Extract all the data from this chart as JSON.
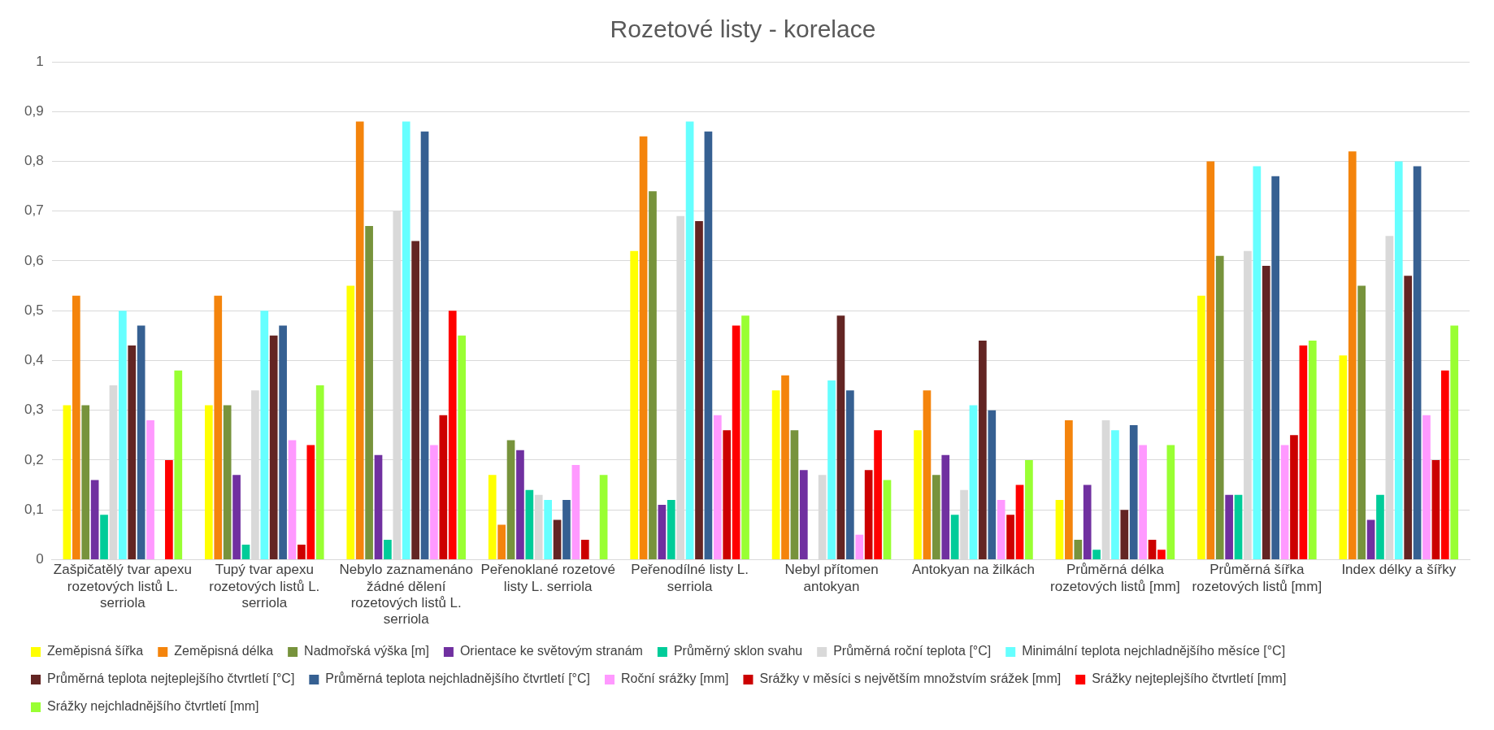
{
  "chart_data": {
    "type": "bar",
    "title": "Rozetové listy - korelace",
    "categories": [
      "Zašpičatělý tvar apexu rozetových listů L. serriola",
      "Tupý tvar apexu rozetových listů L. serriola",
      "Nebylo zaznamenáno žádné dělení rozetových listů L. serriola",
      "Peřenoklané rozetové listy L. serriola",
      "Peřenodílné listy L. serriola",
      "Nebyl přítomen antokyan",
      "Antokyan na žilkách",
      "Průměrná délka rozetových listů [mm]",
      "Průměrná šířka rozetových listů [mm]",
      "Index délky a šířky"
    ],
    "series": [
      {
        "name": "Zeměpisná šířka",
        "color": "#ffff00",
        "values": [
          0.31,
          0.31,
          0.55,
          0.17,
          0.62,
          0.34,
          0.26,
          0.12,
          0.53,
          0.41
        ]
      },
      {
        "name": "Zeměpisná délka",
        "color": "#f4840c",
        "values": [
          0.53,
          0.53,
          0.88,
          0.07,
          0.85,
          0.37,
          0.34,
          0.28,
          0.8,
          0.82
        ]
      },
      {
        "name": "Nadmořská výška [m]",
        "color": "#77933c",
        "values": [
          0.31,
          0.31,
          0.67,
          0.24,
          0.74,
          0.26,
          0.17,
          0.04,
          0.61,
          0.55
        ]
      },
      {
        "name": "Orientace ke světovým stranám",
        "color": "#7030a0",
        "values": [
          0.16,
          0.17,
          0.21,
          0.22,
          0.11,
          0.18,
          0.21,
          0.15,
          0.13,
          0.08
        ]
      },
      {
        "name": "Průměrný sklon svahu",
        "color": "#00cc99",
        "values": [
          0.09,
          0.03,
          0.04,
          0.14,
          0.12,
          null,
          0.09,
          0.02,
          0.13,
          0.13
        ]
      },
      {
        "name": "Průměrná roční teplota [°C]",
        "color": "#d9d9d9",
        "values": [
          0.35,
          0.34,
          0.7,
          0.13,
          0.69,
          0.17,
          0.14,
          0.28,
          0.62,
          0.65
        ]
      },
      {
        "name": "Minimální teplota nejchladnějšího měsíce [°C]",
        "color": "#66ffff",
        "values": [
          0.5,
          0.5,
          0.88,
          0.12,
          0.88,
          0.36,
          0.31,
          0.26,
          0.79,
          0.8
        ]
      },
      {
        "name": "Průměrná teplota nejteplejšího čtvrtletí [°C]",
        "color": "#632523",
        "values": [
          0.43,
          0.45,
          0.64,
          0.08,
          0.68,
          0.49,
          0.44,
          0.1,
          0.59,
          0.57
        ]
      },
      {
        "name": "Průměrná teplota nejchladnějšího čtvrtletí [°C]",
        "color": "#366092",
        "values": [
          0.47,
          0.47,
          0.86,
          0.12,
          0.86,
          0.34,
          0.3,
          0.27,
          0.77,
          0.79
        ]
      },
      {
        "name": "Roční srážky [mm]",
        "color": "#ff99ff",
        "values": [
          0.28,
          0.24,
          0.23,
          0.19,
          0.29,
          0.05,
          0.12,
          0.23,
          0.23,
          0.29
        ]
      },
      {
        "name": "Srážky v měsíci s největším množstvím srážek [mm]",
        "color": "#cc0000",
        "values": [
          null,
          0.03,
          0.29,
          0.04,
          0.26,
          0.18,
          0.09,
          0.04,
          0.25,
          0.2
        ]
      },
      {
        "name": "Srážky nejteplejšího čtvrtletí [mm]",
        "color": "#ff0000",
        "values": [
          0.2,
          0.23,
          0.5,
          null,
          0.47,
          0.26,
          0.15,
          0.02,
          0.43,
          0.38
        ]
      },
      {
        "name": "Srážky nejchladnějšího čtvrtletí [mm]",
        "color": "#99ff33",
        "values": [
          0.38,
          0.35,
          0.45,
          0.17,
          0.49,
          0.16,
          0.2,
          0.23,
          0.44,
          0.47
        ]
      }
    ],
    "ylim": [
      0,
      1
    ],
    "yticks": [
      0,
      {
        "value": 0.1,
        "label": "0,1"
      },
      {
        "value": 0.2,
        "label": "0,2"
      },
      {
        "value": 0.3,
        "label": "0,3"
      },
      {
        "value": 0.4,
        "label": "0,4"
      },
      {
        "value": 0.5,
        "label": "0,5"
      },
      {
        "value": 0.6,
        "label": "0,6"
      },
      {
        "value": 0.7,
        "label": "0,7"
      },
      {
        "value": 0.8,
        "label": "0,8"
      },
      {
        "value": 0.9,
        "label": "0,9"
      },
      1
    ],
    "grid": "y",
    "legend": "bottom"
  }
}
